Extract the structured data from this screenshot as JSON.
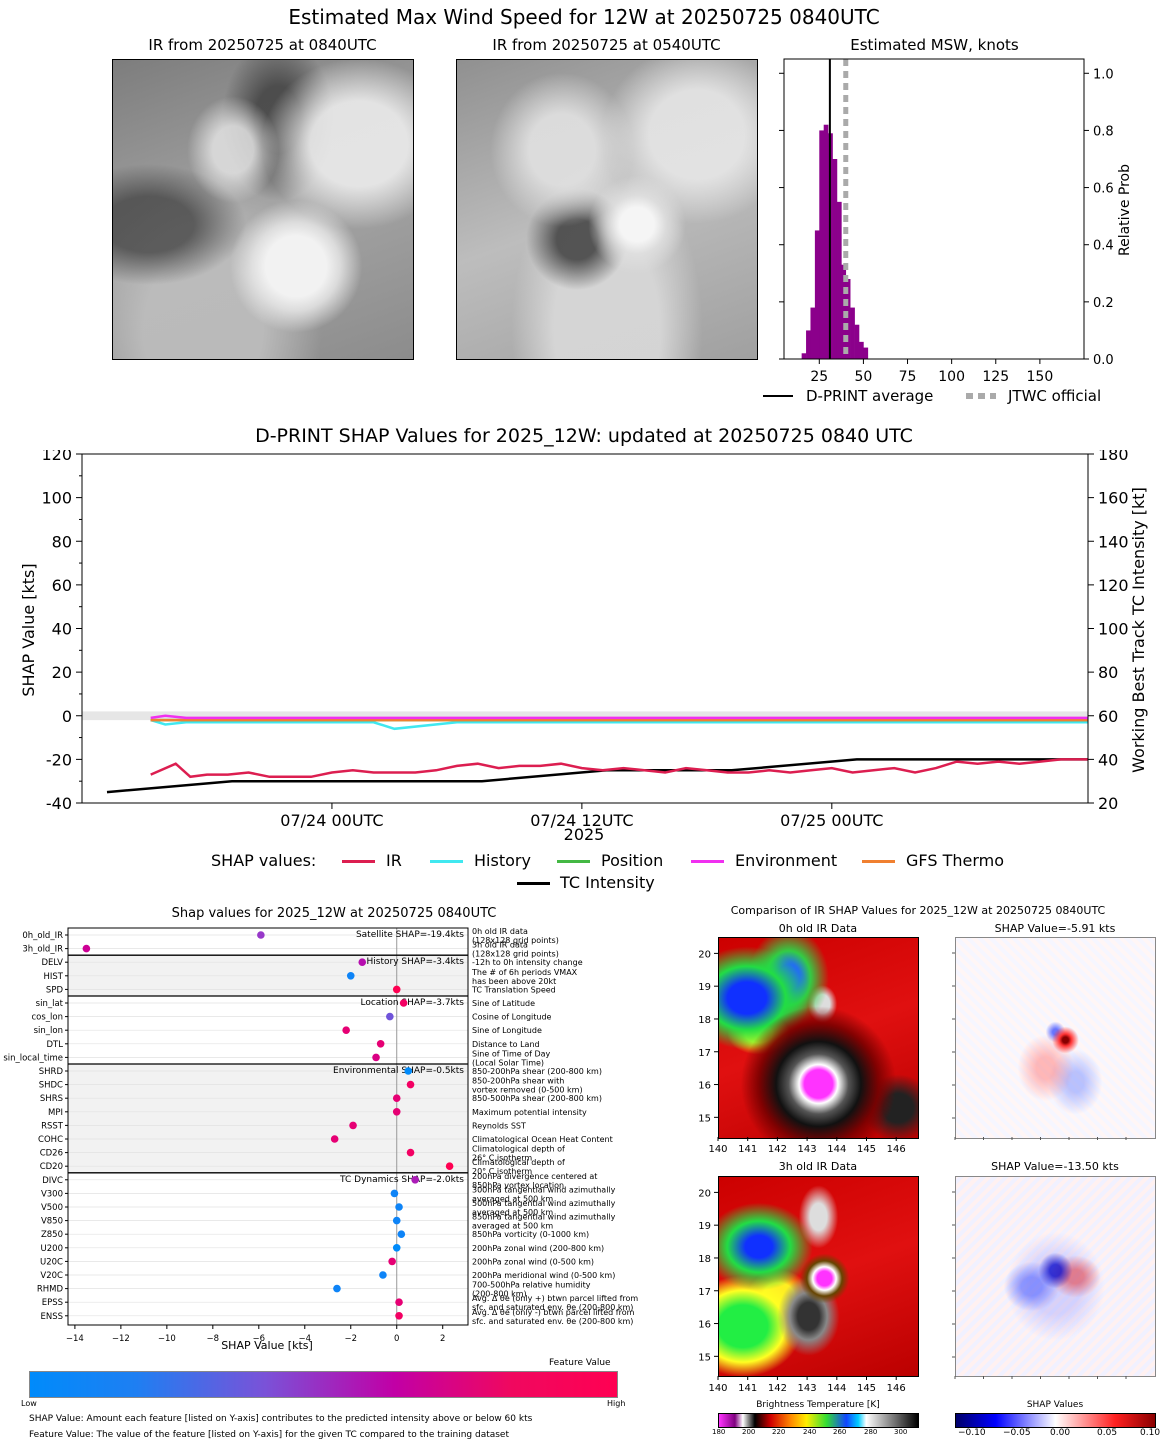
{
  "suptitle": "Estimated Max Wind Speed for 12W at 20250725 0840UTC",
  "ir_panels": [
    {
      "title": "IR from 20250725 at 0840UTC"
    },
    {
      "title": "IR from 20250725 at 0540UTC"
    }
  ],
  "msw": {
    "title": "Estimated MSW, knots",
    "ylabel": "Relative Prob",
    "xticks": [
      "25",
      "50",
      "75",
      "100",
      "125",
      "150"
    ],
    "yticks": [
      "0.0",
      "0.2",
      "0.4",
      "0.6",
      "0.8",
      "1.0"
    ],
    "legend": {
      "dprint": "D-PRINT average",
      "jtwc": "JTWC official"
    },
    "colors": {
      "hist": "#8b008b",
      "avg": "#000000",
      "jtwc": "#aaaaaa"
    }
  },
  "shap_ts": {
    "title": "D-PRINT SHAP Values for 2025_12W: updated at 20250725 0840 UTC",
    "ylabel_left": "SHAP Value [kts]",
    "ylabel_right": "Working Best Track TC Intensity [kt]",
    "xlabel": "2025",
    "yticks_left": [
      "120",
      "100",
      "80",
      "60",
      "40",
      "20",
      "0",
      "-20",
      "-40"
    ],
    "yticks_right": [
      "180",
      "160",
      "140",
      "120",
      "100",
      "80",
      "60",
      "40",
      "20"
    ],
    "xticks": [
      "07/24 00UTC",
      "07/24 12UTC",
      "07/25 00UTC"
    ],
    "legend_title": "SHAP values:",
    "legend": [
      {
        "name": "IR",
        "color": "#dc1e50"
      },
      {
        "name": "History",
        "color": "#40e8f0"
      },
      {
        "name": "Position",
        "color": "#44b844"
      },
      {
        "name": "Environment",
        "color": "#f030f0"
      },
      {
        "name": "GFS Thermo",
        "color": "#f08030"
      },
      {
        "name": "TC Intensity",
        "color": "#000000"
      }
    ]
  },
  "bee": {
    "title": "Shap values for 2025_12W at 20250725 0840UTC",
    "xlabel": "SHAP Value [kts]",
    "xticks": [
      "−14",
      "−12",
      "−10",
      "−8",
      "−6",
      "−4",
      "−2",
      "0",
      "2"
    ],
    "group_labels": [
      "Satellite SHAP=-19.4kts",
      "History SHAP=-3.4kts",
      "Location SHAP=-3.7kts",
      "Environmental SHAP=-0.5kts",
      "TC Dynamics SHAP=-2.0kts"
    ],
    "features": [
      {
        "name": "0h_old_IR",
        "desc": "0h old IR data",
        "desc2": "(128x128 grid points)"
      },
      {
        "name": "3h_old_IR",
        "desc": "3h old IR data",
        "desc2": "(128x128 grid points)"
      },
      {
        "name": "DELV",
        "desc": "-12h to 0h intensity change",
        "desc2": ""
      },
      {
        "name": "HIST",
        "desc": "The # of 6h periods VMAX",
        "desc2": "has been above 20kt"
      },
      {
        "name": "SPD",
        "desc": "TC Translation Speed",
        "desc2": ""
      },
      {
        "name": "sin_lat",
        "desc": "Sine of Latitude",
        "desc2": ""
      },
      {
        "name": "cos_lon",
        "desc": "Cosine of Longitude",
        "desc2": ""
      },
      {
        "name": "sin_lon",
        "desc": "Sine of Longitude",
        "desc2": ""
      },
      {
        "name": "DTL",
        "desc": "Distance to Land",
        "desc2": ""
      },
      {
        "name": "sin_local_time",
        "desc": "Sine of Time of Day",
        "desc2": "(Local Solar Time)"
      },
      {
        "name": "SHRD",
        "desc": "850-200hPa shear (200-800 km)",
        "desc2": ""
      },
      {
        "name": "SHDC",
        "desc": "850-200hPa shear with",
        "desc2": "vortex removed (0-500 km)"
      },
      {
        "name": "SHRS",
        "desc": "850-500hPa shear (200-800 km)",
        "desc2": ""
      },
      {
        "name": "MPI",
        "desc": "Maximum potential intensity",
        "desc2": ""
      },
      {
        "name": "RSST",
        "desc": "Reynolds SST",
        "desc2": ""
      },
      {
        "name": "COHC",
        "desc": "Climatological Ocean Heat Content",
        "desc2": ""
      },
      {
        "name": "CD26",
        "desc": "Climatological depth of",
        "desc2": "26° C isotherm"
      },
      {
        "name": "CD20",
        "desc": "Climatological depth of",
        "desc2": "20° C isotherm"
      },
      {
        "name": "DIVC",
        "desc": "200hPa divergence centered at",
        "desc2": "850hPa vortex location"
      },
      {
        "name": "V300",
        "desc": "300hPa tangential wind azimuthally",
        "desc2": "averaged at 500 km"
      },
      {
        "name": "V500",
        "desc": "500hPa tangential wind azimuthally",
        "desc2": "averaged at 500 km"
      },
      {
        "name": "V850",
        "desc": "850hPa tangential wind azimuthally",
        "desc2": "averaged at 500 km"
      },
      {
        "name": "Z850",
        "desc": "850hPa vorticity (0-1000 km)",
        "desc2": ""
      },
      {
        "name": "U200",
        "desc": "200hPa zonal wind (200-800 km)",
        "desc2": ""
      },
      {
        "name": "U20C",
        "desc": "200hPa zonal wind (0-500 km)",
        "desc2": ""
      },
      {
        "name": "V20C",
        "desc": "200hPa meridional wind (0-500 km)",
        "desc2": ""
      },
      {
        "name": "RHMD",
        "desc": "700-500hPa relative humidity",
        "desc2": "(200-800 km)"
      },
      {
        "name": "EPSS",
        "desc": "Avg. Δ θe (only +) btwn parcel lifted from",
        "desc2": "sfc. and saturated env. θe (200-800 km)"
      },
      {
        "name": "ENSS",
        "desc": "Avg. Δ θe (only -) btwn parcel lifted from",
        "desc2": "sfc. and saturated env. θe (200-800 km)"
      }
    ],
    "colorbar": {
      "title": "Feature Value",
      "low": "Low",
      "high": "High"
    },
    "note1": "SHAP Value: Amount each feature [listed on Y-axis] contributes to the predicted intensity above or below 60 kts",
    "note2": "Feature Value: The value of the feature [listed on Y-axis] for the given TC compared to the training dataset"
  },
  "compare": {
    "title": "Comparison of IR SHAP Values for 2025_12W at 20250725 0840UTC",
    "panels": [
      {
        "title": "0h old IR Data"
      },
      {
        "title": "SHAP Value=-5.91 kts"
      },
      {
        "title": "3h old IR Data"
      },
      {
        "title": "SHAP Value=-13.50 kts"
      }
    ],
    "xticks": [
      "140",
      "141",
      "142",
      "143",
      "144",
      "145",
      "146"
    ],
    "yticks": [
      "20",
      "19",
      "18",
      "17",
      "16",
      "15"
    ],
    "bt_label": "Brightness Temperature [K]",
    "bt_ticks": [
      "180",
      "200",
      "220",
      "240",
      "260",
      "280",
      "300"
    ],
    "sv_label": "SHAP Values",
    "sv_ticks": [
      "−0.10",
      "−0.05",
      "0.00",
      "0.05",
      "0.10"
    ]
  },
  "chart_data": [
    {
      "type": "bar",
      "title": "Estimated MSW, knots",
      "xlabel": "",
      "ylabel": "Relative Prob",
      "xlim": [
        5,
        175
      ],
      "ylim": [
        0,
        1.05
      ],
      "bin_width": 2.5,
      "bins_start": [
        15,
        17.5,
        20,
        22.5,
        25,
        27.5,
        30,
        32.5,
        35,
        37.5,
        40,
        42.5,
        45,
        47.5,
        50
      ],
      "values": [
        0.02,
        0.1,
        0.18,
        0.45,
        0.8,
        0.82,
        0.79,
        0.7,
        0.55,
        0.33,
        0.28,
        0.18,
        0.12,
        0.06,
        0.04
      ],
      "dprint_average": 31,
      "jtwc_official": 40
    },
    {
      "type": "line",
      "title": "D-PRINT SHAP Values for 2025_12W: updated at 20250725 0840 UTC",
      "x_unit": "hours since 07/23 12UTC",
      "xlim": [
        0,
        48.3
      ],
      "ylim_left": [
        -40,
        120
      ],
      "ylim_right": [
        20,
        180
      ],
      "series": [
        {
          "name": "IR",
          "x": [
            3.3,
            4.5,
            5.2,
            6,
            7,
            8,
            9,
            10,
            11,
            12,
            13,
            14,
            15,
            16,
            17,
            18,
            19,
            20,
            21,
            22,
            23,
            24,
            25,
            26,
            27,
            28,
            29,
            30,
            31,
            32,
            33,
            34,
            35,
            36,
            37,
            38,
            39,
            40,
            41,
            42,
            43,
            44,
            45,
            46,
            47,
            48.3
          ],
          "y": [
            -27,
            -22,
            -28,
            -27,
            -27,
            -26,
            -28,
            -28,
            -28,
            -26,
            -25,
            -26,
            -26,
            -26,
            -25,
            -23,
            -22,
            -24,
            -23,
            -23,
            -22,
            -24,
            -25,
            -24,
            -25,
            -26,
            -24,
            -25,
            -26,
            -26,
            -25,
            -26,
            -25,
            -24,
            -26,
            -25,
            -24,
            -26,
            -24,
            -21,
            -22,
            -21,
            -22,
            -21,
            -20,
            -20
          ]
        },
        {
          "name": "History",
          "x": [
            3.3,
            4,
            5,
            10,
            14,
            15,
            18,
            20,
            24,
            30,
            36,
            42,
            48.3
          ],
          "y": [
            -2,
            -4,
            -3,
            -3,
            -3,
            -6,
            -3,
            -3,
            -3,
            -3,
            -3,
            -3,
            -3
          ]
        },
        {
          "name": "Position",
          "x": [
            3.3,
            48.3
          ],
          "y": [
            -2,
            -2
          ]
        },
        {
          "name": "Environment",
          "x": [
            3.3,
            4,
            5,
            10,
            15,
            20,
            25,
            30,
            35,
            40,
            45,
            48.3
          ],
          "y": [
            -1,
            0,
            -1,
            -1,
            -1,
            -1,
            -1,
            -1,
            -1,
            -1,
            -1,
            -1
          ]
        },
        {
          "name": "GFS Thermo",
          "x": [
            3.3,
            48.3
          ],
          "y": [
            -2,
            -2
          ]
        },
        {
          "name": "TC Intensity",
          "axis": "right",
          "x": [
            1.2,
            7.2,
            13.2,
            19.2,
            25.2,
            31.2,
            37.2,
            43.2,
            48.3
          ],
          "y": [
            25,
            30,
            30,
            30,
            35,
            35,
            40,
            40,
            40
          ]
        }
      ]
    },
    {
      "type": "scatter",
      "title": "Shap values for 2025_12W at 20250725 0840UTC",
      "xlabel": "SHAP Value [kts]",
      "xlim": [
        -14.3,
        3.1
      ],
      "features": [
        "0h_old_IR",
        "3h_old_IR",
        "DELV",
        "HIST",
        "SPD",
        "sin_lat",
        "cos_lon",
        "sin_lon",
        "DTL",
        "sin_local_time",
        "SHRD",
        "SHDC",
        "SHRS",
        "MPI",
        "RSST",
        "COHC",
        "CD26",
        "CD20",
        "DIVC",
        "V300",
        "V500",
        "V850",
        "Z850",
        "U200",
        "U20C",
        "V20C",
        "RHMD",
        "EPSS",
        "ENSS"
      ],
      "shap": [
        -5.91,
        -13.5,
        -1.5,
        -2.0,
        0.0,
        0.3,
        -0.3,
        -2.2,
        -0.7,
        -0.9,
        0.5,
        0.6,
        0.0,
        0.0,
        -1.9,
        -2.7,
        0.6,
        2.3,
        0.8,
        -0.1,
        0.1,
        0.0,
        0.2,
        0.0,
        -0.2,
        -0.6,
        -2.6,
        0.1,
        0.1
      ],
      "feature_value": [
        0.55,
        0.8,
        0.7,
        0.05,
        1.0,
        0.95,
        0.4,
        0.9,
        0.9,
        0.85,
        0.0,
        0.95,
        0.9,
        0.9,
        0.9,
        0.9,
        0.95,
        1.0,
        0.65,
        0.05,
        0.05,
        0.05,
        0.05,
        0.0,
        0.9,
        0.05,
        0.05,
        0.9,
        0.95
      ]
    }
  ]
}
